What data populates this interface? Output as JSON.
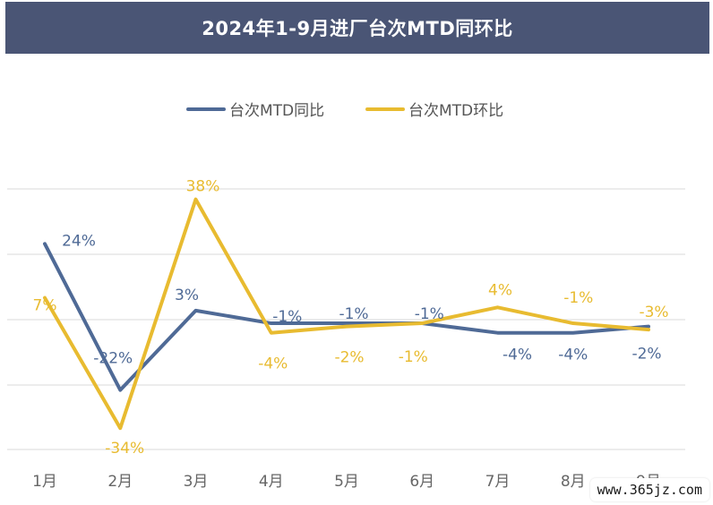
{
  "colors": {
    "title_bg": "#4a5575",
    "series_mom": "#e8bb30",
    "series_yoy": "#4f6a96",
    "grid": "#d9d9d9",
    "label": "#666666"
  },
  "chart_data": {
    "type": "line",
    "title": "2024年1-9月进厂台次MTD同环比",
    "categories": [
      "1月",
      "2月",
      "3月",
      "4月",
      "5月",
      "6月",
      "7月",
      "8月",
      "9月"
    ],
    "legend_position": "top-center",
    "grid": true,
    "ylim": [
      -40,
      40
    ],
    "series": [
      {
        "name": "台次MTD同比",
        "color": "#4f6a96",
        "values": [
          24,
          -22,
          3,
          -1,
          -1,
          -1,
          -4,
          -4,
          -2
        ],
        "labels": [
          "24%",
          "-22%",
          "3%",
          "-1%",
          "-1%",
          "-1%",
          "-4%",
          "-4%",
          "-2%"
        ]
      },
      {
        "name": "台次MTD环比",
        "color": "#e8bb30",
        "values": [
          7,
          -34,
          38,
          -4,
          -2,
          -1,
          4,
          -1,
          -3
        ],
        "labels": [
          "7%",
          "-34%",
          "38%",
          "-4%",
          "-2%",
          "-1%",
          "4%",
          "-1%",
          "-3%"
        ]
      }
    ]
  },
  "badge": "www.365jz.com"
}
